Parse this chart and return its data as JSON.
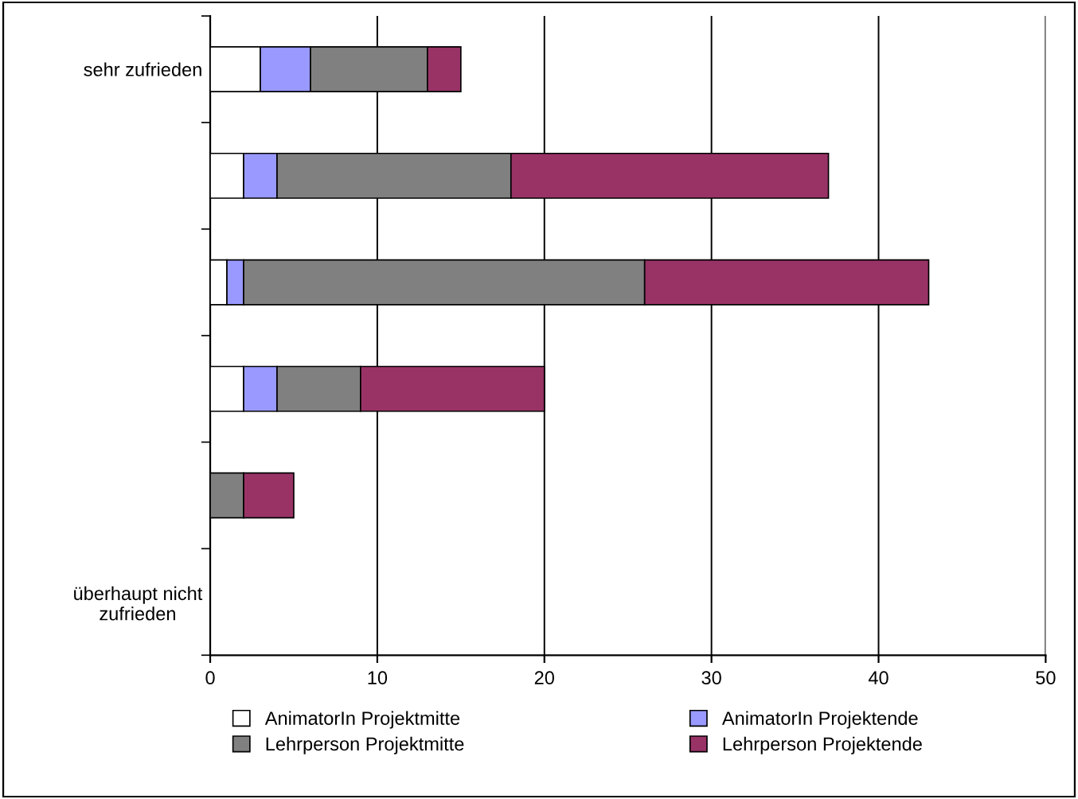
{
  "chart_data": {
    "type": "bar",
    "orientation": "horizontal",
    "stacked": true,
    "categories": [
      "sehr zufrieden",
      null,
      null,
      null,
      null,
      "überhaupt nicht zufrieden"
    ],
    "series": [
      {
        "name": "AnimatorIn Projektmitte",
        "color": "#ffffff",
        "values": [
          3,
          2,
          1,
          2,
          0,
          0
        ]
      },
      {
        "name": "AnimatorIn Projektende",
        "color": "#9999ff",
        "values": [
          3,
          2,
          1,
          2,
          0,
          0
        ]
      },
      {
        "name": "Lehrperson Projektmitte",
        "color": "#808080",
        "values": [
          7,
          14,
          24,
          5,
          2,
          0
        ]
      },
      {
        "name": "Lehrperson Projektende",
        "color": "#993366",
        "values": [
          2,
          19,
          17,
          11,
          3,
          0
        ]
      }
    ],
    "xlim": [
      0,
      50
    ],
    "xticks": [
      0,
      10,
      20,
      30,
      40,
      50
    ],
    "grid": "x",
    "legend": "bottom"
  }
}
